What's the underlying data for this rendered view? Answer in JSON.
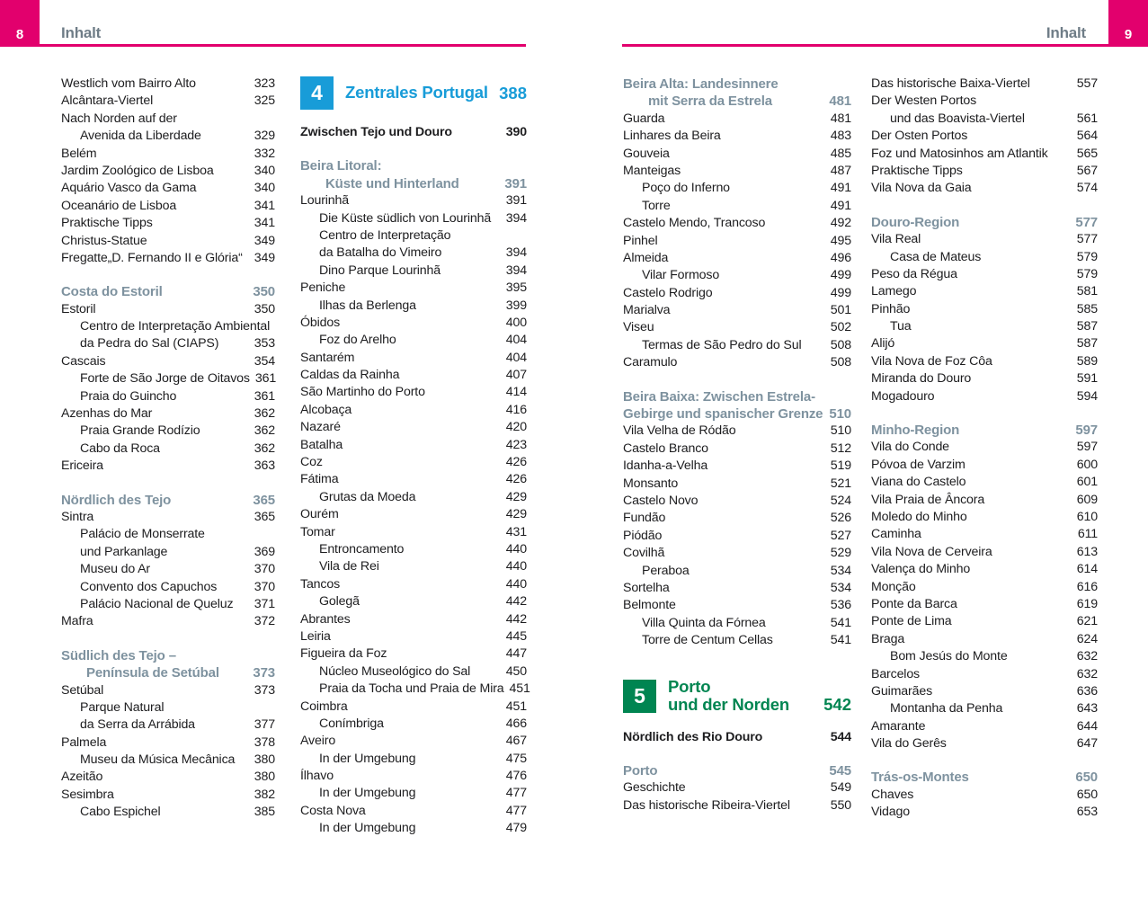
{
  "colors": {
    "pink": "#e2006d",
    "blue": "#189cd8",
    "green": "#008551",
    "slate": "#7e929f",
    "text": "#1d1d1f",
    "header_grey": "#6f7d87"
  },
  "header": {
    "left": {
      "page": "8",
      "title": "Inhalt"
    },
    "right": {
      "page": "9",
      "title": "Inhalt"
    }
  },
  "columns": [
    {
      "rows": [
        {
          "t": "Westlich vom Bairro Alto",
          "p": "323"
        },
        {
          "t": "Alcântara-Viertel",
          "p": "325"
        },
        {
          "t": "Nach Norden auf der",
          "p": ""
        },
        {
          "t": "Avenida da Liberdade",
          "p": "329",
          "i": 1
        },
        {
          "t": "Belém",
          "p": "332"
        },
        {
          "t": "Jardim Zoológico de Lisboa",
          "p": "340"
        },
        {
          "t": "Aquário Vasco da Gama",
          "p": "340"
        },
        {
          "t": "Oceanário de Lisboa",
          "p": "341"
        },
        {
          "t": "Praktische Tipps",
          "p": "341"
        },
        {
          "t": "Christus-Statue",
          "p": "349"
        },
        {
          "t": "Fregatte„D. Fernando II e Glória“",
          "p": "349"
        },
        {
          "s": "gap"
        },
        {
          "t": "Costa do Estoril",
          "p": "350",
          "s": "head"
        },
        {
          "t": "Estoril",
          "p": "350"
        },
        {
          "t": "Centro de Interpretação Ambiental",
          "p": "",
          "i": 1
        },
        {
          "t": "da Pedra do Sal (CIAPS)",
          "p": "353",
          "i": 1
        },
        {
          "t": "Cascais",
          "p": "354"
        },
        {
          "t": "Forte de São Jorge de Oitavos",
          "p": "361",
          "i": 1
        },
        {
          "t": "Praia do Guincho",
          "p": "361",
          "i": 1
        },
        {
          "t": "Azenhas do Mar",
          "p": "362"
        },
        {
          "t": "Praia Grande Rodízio",
          "p": "362",
          "i": 1
        },
        {
          "t": "Cabo da Roca",
          "p": "362",
          "i": 1
        },
        {
          "t": "Ericeira",
          "p": "363"
        },
        {
          "s": "gap"
        },
        {
          "t": "Nördlich des Tejo",
          "p": "365",
          "s": "head"
        },
        {
          "t": "Sintra",
          "p": "365"
        },
        {
          "t": "Palácio de Monserrate",
          "p": "",
          "i": 1
        },
        {
          "t": "und Parkanlage",
          "p": "369",
          "i": 1
        },
        {
          "t": "Museu do Ar",
          "p": "370",
          "i": 1
        },
        {
          "t": "Convento dos Capuchos",
          "p": "370",
          "i": 1
        },
        {
          "t": "Palácio Nacional de Queluz",
          "p": "371",
          "i": 1
        },
        {
          "t": "Mafra",
          "p": "372"
        },
        {
          "s": "gap"
        },
        {
          "t": "Südlich des Tejo –",
          "p": "",
          "s": "head"
        },
        {
          "t": "Península de Setúbal",
          "p": "373",
          "s": "head",
          "i": 1
        },
        {
          "t": "Setúbal",
          "p": "373"
        },
        {
          "t": "Parque Natural",
          "p": "",
          "i": 1
        },
        {
          "t": "da Serra da Arrábida",
          "p": "377",
          "i": 1
        },
        {
          "t": "Palmela",
          "p": "378"
        },
        {
          "t": "Museu da Música Mecânica",
          "p": "380",
          "i": 1
        },
        {
          "t": "Azeitão",
          "p": "380"
        },
        {
          "t": "Sesimbra",
          "p": "382"
        },
        {
          "t": "Cabo Espichel",
          "p": "385",
          "i": 1
        }
      ]
    },
    {
      "rows": [
        {
          "s": "chapter",
          "num": "4",
          "color": "blue",
          "lines": [
            "Zentrales Portugal"
          ],
          "p": "388"
        },
        {
          "s": "gapS"
        },
        {
          "t": "Zwischen Tejo und Douro",
          "p": "390",
          "s": "bold"
        },
        {
          "s": "gap"
        },
        {
          "t": "Beira Litoral:",
          "p": "",
          "s": "head"
        },
        {
          "t": "Küste und Hinterland",
          "p": "391",
          "s": "head",
          "i": 1
        },
        {
          "t": "Lourinhã",
          "p": "391"
        },
        {
          "t": "Die Küste südlich von Lourinhã",
          "p": "394",
          "i": 1
        },
        {
          "t": "Centro de Interpretação",
          "p": "",
          "i": 1
        },
        {
          "t": "da Batalha do Vimeiro",
          "p": "394",
          "i": 1
        },
        {
          "t": "Dino Parque Lourinhã",
          "p": "394",
          "i": 1
        },
        {
          "t": "Peniche",
          "p": "395"
        },
        {
          "t": "Ilhas da Berlenga",
          "p": "399",
          "i": 1
        },
        {
          "t": "Óbidos",
          "p": "400"
        },
        {
          "t": "Foz do Arelho",
          "p": "404",
          "i": 1
        },
        {
          "t": "Santarém",
          "p": "404"
        },
        {
          "t": "Caldas da Rainha",
          "p": "407"
        },
        {
          "t": "São Martinho do Porto",
          "p": "414"
        },
        {
          "t": "Alcobaça",
          "p": "416"
        },
        {
          "t": "Nazaré",
          "p": "420"
        },
        {
          "t": "Batalha",
          "p": "423"
        },
        {
          "t": "Coz",
          "p": "426"
        },
        {
          "t": "Fátima",
          "p": "426"
        },
        {
          "t": "Grutas da Moeda",
          "p": "429",
          "i": 1
        },
        {
          "t": "Ourém",
          "p": "429"
        },
        {
          "t": "Tomar",
          "p": "431"
        },
        {
          "t": "Entroncamento",
          "p": "440",
          "i": 1
        },
        {
          "t": "Vila de Rei",
          "p": "440",
          "i": 1
        },
        {
          "t": "Tancos",
          "p": "440"
        },
        {
          "t": "Golegã",
          "p": "442",
          "i": 1
        },
        {
          "t": "Abrantes",
          "p": "442"
        },
        {
          "t": "Leiria",
          "p": "445"
        },
        {
          "t": "Figueira da Foz",
          "p": "447"
        },
        {
          "t": "Núcleo Museológico do Sal",
          "p": "450",
          "i": 1
        },
        {
          "t": "Praia da Tocha und Praia de Mira",
          "p": "451",
          "i": 1
        },
        {
          "t": "Coimbra",
          "p": "451"
        },
        {
          "t": "Conímbriga",
          "p": "466",
          "i": 1
        },
        {
          "t": "Aveiro",
          "p": "467"
        },
        {
          "t": "In der Umgebung",
          "p": "475",
          "i": 1
        },
        {
          "t": "Ílhavo",
          "p": "476"
        },
        {
          "t": "In der Umgebung",
          "p": "477",
          "i": 1
        },
        {
          "t": "Costa Nova",
          "p": "477"
        },
        {
          "t": "In der Umgebung",
          "p": "479",
          "i": 1
        }
      ]
    },
    {
      "rows": [
        {
          "t": "Beira Alta: Landesinnere",
          "p": "",
          "s": "head"
        },
        {
          "t": "mit Serra da Estrela",
          "p": "481",
          "s": "head",
          "i": 1
        },
        {
          "t": "Guarda",
          "p": "481"
        },
        {
          "t": "Linhares da Beira",
          "p": "483"
        },
        {
          "t": "Gouveia",
          "p": "485"
        },
        {
          "t": "Manteigas",
          "p": "487"
        },
        {
          "t": "Poço do Inferno",
          "p": "491",
          "i": 1
        },
        {
          "t": "Torre",
          "p": "491",
          "i": 1
        },
        {
          "t": "Castelo Mendo, Trancoso",
          "p": "492"
        },
        {
          "t": "Pinhel",
          "p": "495"
        },
        {
          "t": "Almeida",
          "p": "496"
        },
        {
          "t": "Vilar Formoso",
          "p": "499",
          "i": 1
        },
        {
          "t": "Castelo Rodrigo",
          "p": "499"
        },
        {
          "t": "Marialva",
          "p": "501"
        },
        {
          "t": "Viseu",
          "p": "502"
        },
        {
          "t": "Termas de São Pedro do Sul",
          "p": "508",
          "i": 1
        },
        {
          "t": "Caramulo",
          "p": "508"
        },
        {
          "s": "gap"
        },
        {
          "t": "Beira Baixa: Zwischen Estrela-",
          "p": "",
          "s": "head"
        },
        {
          "t": "Gebirge und spanischer Grenze",
          "p": "510",
          "s": "head"
        },
        {
          "t": "Vila Velha de Ródão",
          "p": "510"
        },
        {
          "t": "Castelo Branco",
          "p": "512"
        },
        {
          "t": "Idanha-a-Velha",
          "p": "519"
        },
        {
          "t": "Monsanto",
          "p": "521"
        },
        {
          "t": "Castelo Novo",
          "p": "524"
        },
        {
          "t": "Fundão",
          "p": "526"
        },
        {
          "t": "Piódão",
          "p": "527"
        },
        {
          "t": "Covilhã",
          "p": "529"
        },
        {
          "t": "Peraboa",
          "p": "534",
          "i": 1
        },
        {
          "t": "Sortelha",
          "p": "534"
        },
        {
          "t": "Belmonte",
          "p": "536"
        },
        {
          "t": "Villa Quinta da Fórnea",
          "p": "541",
          "i": 1
        },
        {
          "t": "Torre de Centum Cellas",
          "p": "541",
          "i": 1
        },
        {
          "s": "gapL"
        },
        {
          "s": "chapter",
          "num": "5",
          "color": "green",
          "lines": [
            "Porto",
            "und der Norden"
          ],
          "p": "542"
        },
        {
          "s": "gapS"
        },
        {
          "t": "Nördlich des Rio Douro",
          "p": "544",
          "s": "bold"
        },
        {
          "s": "gap"
        },
        {
          "t": "Porto",
          "p": "545",
          "s": "head"
        },
        {
          "t": "Geschichte",
          "p": "549"
        },
        {
          "t": "Das historische Ribeira-Viertel",
          "p": "550"
        }
      ]
    },
    {
      "rows": [
        {
          "t": "Das historische Baixa-Viertel",
          "p": "557"
        },
        {
          "t": "Der Westen Portos",
          "p": ""
        },
        {
          "t": "und das Boavista-Viertel",
          "p": "561",
          "i": 1
        },
        {
          "t": "Der Osten Portos",
          "p": "564"
        },
        {
          "t": "Foz und Matosinhos am Atlantik",
          "p": "565"
        },
        {
          "t": "Praktische Tipps",
          "p": "567"
        },
        {
          "t": "Vila Nova da Gaia",
          "p": "574"
        },
        {
          "s": "gap"
        },
        {
          "t": "Douro-Region",
          "p": "577",
          "s": "head"
        },
        {
          "t": "Vila Real",
          "p": "577"
        },
        {
          "t": "Casa de Mateus",
          "p": "579",
          "i": 1
        },
        {
          "t": "Peso da Régua",
          "p": "579"
        },
        {
          "t": "Lamego",
          "p": "581"
        },
        {
          "t": "Pinhão",
          "p": "585"
        },
        {
          "t": "Tua",
          "p": "587",
          "i": 1
        },
        {
          "t": "Alijó",
          "p": "587"
        },
        {
          "t": "Vila Nova de Foz Côa",
          "p": "589"
        },
        {
          "t": "Miranda do Douro",
          "p": "591"
        },
        {
          "t": "Mogadouro",
          "p": "594"
        },
        {
          "s": "gap"
        },
        {
          "t": "Minho-Region",
          "p": "597",
          "s": "head"
        },
        {
          "t": "Vila do Conde",
          "p": "597"
        },
        {
          "t": "Póvoa de Varzim",
          "p": "600"
        },
        {
          "t": "Viana do Castelo",
          "p": "601"
        },
        {
          "t": "Vila Praia de Âncora",
          "p": "609"
        },
        {
          "t": "Moledo do Minho",
          "p": "610"
        },
        {
          "t": "Caminha",
          "p": "611"
        },
        {
          "t": "Vila Nova de Cerveira",
          "p": "613"
        },
        {
          "t": "Valença do Minho",
          "p": "614"
        },
        {
          "t": "Monção",
          "p": "616"
        },
        {
          "t": "Ponte da Barca",
          "p": "619"
        },
        {
          "t": "Ponte de Lima",
          "p": "621"
        },
        {
          "t": "Braga",
          "p": "624"
        },
        {
          "t": "Bom Jesús do Monte",
          "p": "632",
          "i": 1
        },
        {
          "t": "Barcelos",
          "p": "632"
        },
        {
          "t": "Guimarães",
          "p": "636"
        },
        {
          "t": "Montanha da Penha",
          "p": "643",
          "i": 1
        },
        {
          "t": "Amarante",
          "p": "644"
        },
        {
          "t": "Vila do Gerês",
          "p": "647"
        },
        {
          "s": "gap"
        },
        {
          "t": "Trás-os-Montes",
          "p": "650",
          "s": "head"
        },
        {
          "t": "Chaves",
          "p": "650"
        },
        {
          "t": "Vidago",
          "p": "653"
        }
      ]
    }
  ]
}
